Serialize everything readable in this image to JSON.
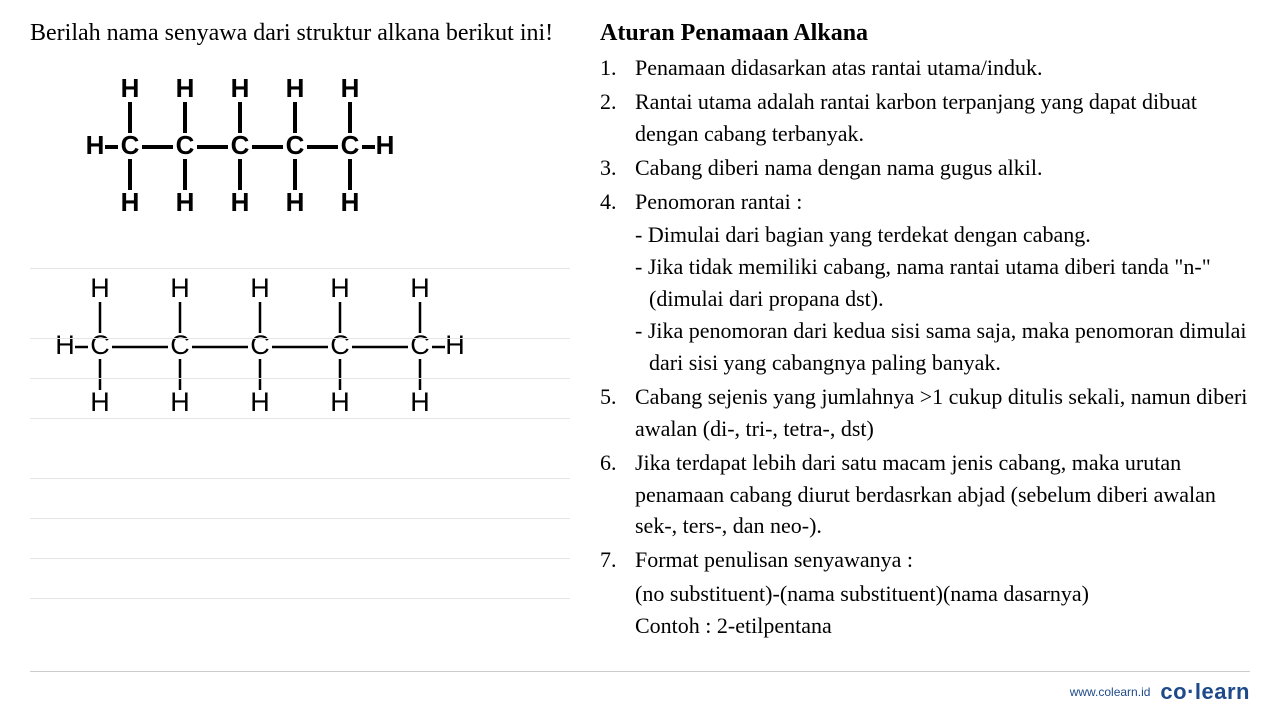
{
  "question": "Berilah nama senyawa dari struktur alkana berikut ini!",
  "rules_title": "Aturan Penamaan Alkana",
  "rules": [
    {
      "n": "1.",
      "t": "Penamaan didasarkan atas rantai utama/induk."
    },
    {
      "n": "2.",
      "t": "Rantai utama adalah rantai karbon terpanjang yang dapat dibuat dengan cabang terbanyak."
    },
    {
      "n": "3.",
      "t": "Cabang diberi nama dengan nama gugus alkil."
    },
    {
      "n": "4.",
      "t": "Penomoran rantai :"
    }
  ],
  "rule4_sub": [
    "- Dimulai dari bagian yang terdekat dengan cabang.",
    "- Jika tidak memiliki cabang, nama rantai utama diberi tanda \"n-\" (dimulai dari propana dst).",
    "- Jika penomoran dari kedua sisi sama saja, maka penomoran dimulai dari sisi yang cabangnya paling banyak."
  ],
  "rules_after": [
    {
      "n": "5.",
      "t": "Cabang sejenis yang jumlahnya >1 cukup ditulis sekali, namun diberi awalan (di-, tri-, tetra-, dst)"
    },
    {
      "n": "6.",
      "t": "Jika terdapat lebih dari satu macam jenis cabang, maka urutan penamaan cabang diurut berdasrkan abjad (sebelum diberi awalan sek-, ters-, dan neo-)."
    },
    {
      "n": "7.",
      "t": "Format penulisan senyawanya :"
    }
  ],
  "rule7_extra": [
    "(no substituent)-(nama substituent)(nama dasarnya)",
    "Contoh : 2-etilpentana"
  ],
  "molecule1": {
    "carbons": 5,
    "spacing": 55,
    "stroke": "#000000",
    "stroke_width": 4,
    "font": "bold 26px Arial"
  },
  "molecule2": {
    "carbons": 5,
    "spacing": 80,
    "stroke": "#000000",
    "stroke_width": 2.5,
    "font": "27px Arial"
  },
  "footer": {
    "url": "www.colearn.id",
    "logo": "co·learn"
  },
  "colors": {
    "text": "#000000",
    "brand": "#1e4a8a",
    "bg": "#ffffff",
    "line": "#e5e5e5"
  }
}
